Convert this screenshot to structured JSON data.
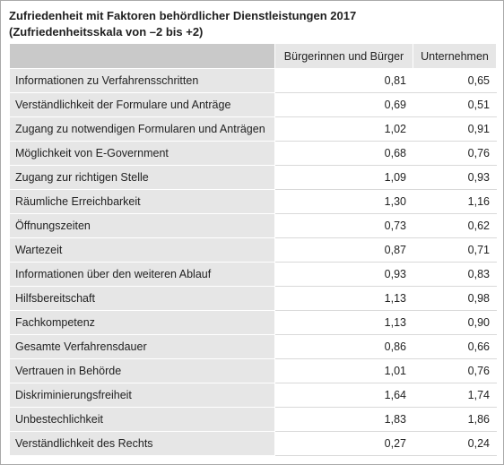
{
  "chart_data": {
    "type": "table",
    "title": "Zufriedenheit mit Faktoren behördlicher Dienstleistungen 2017",
    "subtitle": "(Zufriedenheitsskala von –2 bis +2)",
    "columns": [
      "",
      "Bürgerinnen und Bürger",
      "Unternehmen"
    ],
    "rows": [
      {
        "label": "Informationen zu Verfahrensschritten",
        "values": [
          "0,81",
          "0,65"
        ]
      },
      {
        "label": "Verständlichkeit der Formulare und Anträge",
        "values": [
          "0,69",
          "0,51"
        ]
      },
      {
        "label": "Zugang zu notwendigen Formularen und Anträgen",
        "values": [
          "1,02",
          "0,91"
        ]
      },
      {
        "label": "Möglichkeit von E-Government",
        "values": [
          "0,68",
          "0,76"
        ]
      },
      {
        "label": "Zugang zur richtigen Stelle",
        "values": [
          "1,09",
          "0,93"
        ]
      },
      {
        "label": "Räumliche Erreichbarkeit",
        "values": [
          "1,30",
          "1,16"
        ]
      },
      {
        "label": "Öffnungszeiten",
        "values": [
          "0,73",
          "0,62"
        ]
      },
      {
        "label": "Wartezeit",
        "values": [
          "0,87",
          "0,71"
        ]
      },
      {
        "label": "Informationen über den weiteren Ablauf",
        "values": [
          "0,93",
          "0,83"
        ]
      },
      {
        "label": "Hilfsbereitschaft",
        "values": [
          "1,13",
          "0,98"
        ]
      },
      {
        "label": "Fachkompetenz",
        "values": [
          "1,13",
          "0,90"
        ]
      },
      {
        "label": "Gesamte Verfahrensdauer",
        "values": [
          "0,86",
          "0,66"
        ]
      },
      {
        "label": "Vertrauen in Behörde",
        "values": [
          "1,01",
          "0,76"
        ]
      },
      {
        "label": "Diskriminierungsfreiheit",
        "values": [
          "1,64",
          "1,74"
        ]
      },
      {
        "label": "Unbestechlichkeit",
        "values": [
          "1,83",
          "1,86"
        ]
      },
      {
        "label": "Verständlichkeit des Rechts",
        "values": [
          "0,27",
          "0,24"
        ]
      }
    ]
  }
}
